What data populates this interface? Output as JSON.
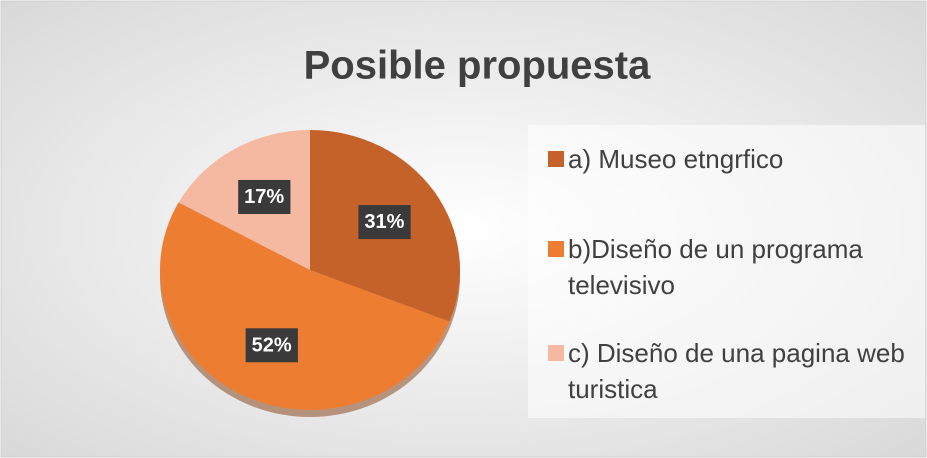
{
  "chart_data": {
    "type": "pie",
    "title": "Posible propuesta",
    "categories": [
      "a) Museo etngrfico",
      "b)Diseño de un programa televisivo",
      "c) Diseño de una pagina web turistica"
    ],
    "values": [
      31,
      52,
      17
    ],
    "value_labels": [
      "31%",
      "52%",
      "17%"
    ],
    "colors": [
      "#c5622a",
      "#ed7d31",
      "#f4b9a0"
    ],
    "legend": "right"
  }
}
